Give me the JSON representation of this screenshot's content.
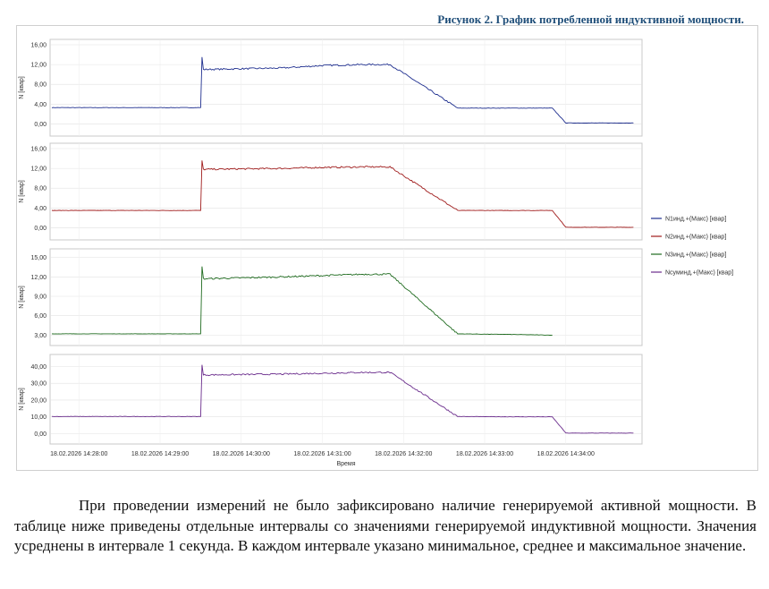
{
  "caption": "Рисунок 2. График потребленной индуктивной мощности.",
  "paragraph": "При проведении измерений не было зафиксировано наличие генерируемой активной мощности. В таблице ниже приведены отдельные интервалы со значениями генерируемой индуктивной мощности. Значения усреднены в интервале 1 секунда. В каждом интервале указано минимальное, среднее и максимальное значение.",
  "colors": {
    "n1": "#1f2f8f",
    "n2": "#a01c1c",
    "n3": "#1f6b1f",
    "nsum": "#6a2c8c"
  },
  "chart_data": [
    {
      "type": "line",
      "ylabel": "N [квар]",
      "yticks": [
        "16,00",
        "12,00",
        "8,00",
        "4,00",
        "0,00"
      ],
      "ylim": [
        -1,
        16
      ],
      "series": [
        {
          "name": "N1инд.+(Макс) [квар]",
          "color": "#1f2f8f",
          "x": [
            "14:27:40",
            "14:29:30",
            "14:29:31",
            "14:29:32",
            "14:30:30",
            "14:31:00",
            "14:31:30",
            "14:31:50",
            "14:32:40",
            "14:33:20",
            "14:33:50",
            "14:34:00",
            "14:34:50"
          ],
          "y": [
            3.3,
            3.3,
            13.5,
            11.0,
            11.3,
            11.8,
            12.0,
            12.0,
            3.2,
            3.2,
            3.2,
            0.2,
            0.2
          ]
        }
      ]
    },
    {
      "type": "line",
      "ylabel": "N [квар]",
      "yticks": [
        "16,00",
        "12,00",
        "8,00",
        "4,00",
        "0,00"
      ],
      "ylim": [
        -1,
        16
      ],
      "series": [
        {
          "name": "N2инд.+(Макс) [квар]",
          "color": "#a01c1c",
          "x": [
            "14:27:40",
            "14:29:30",
            "14:29:31",
            "14:29:32",
            "14:30:30",
            "14:31:00",
            "14:31:30",
            "14:31:50",
            "14:32:40",
            "14:33:20",
            "14:33:50",
            "14:34:00",
            "14:34:50"
          ],
          "y": [
            3.5,
            3.5,
            13.6,
            11.8,
            12.0,
            12.2,
            12.3,
            12.3,
            3.5,
            3.5,
            3.5,
            0.1,
            0.1
          ]
        }
      ]
    },
    {
      "type": "line",
      "ylabel": "N [квар]",
      "yticks": [
        "15,00",
        "12,00",
        "9,00",
        "6,00",
        "3,00"
      ],
      "ylim": [
        2.5,
        15.5
      ],
      "series": [
        {
          "name": "N3инд.+(Макс) [квар]",
          "color": "#1f6b1f",
          "x": [
            "14:27:40",
            "14:29:30",
            "14:29:31",
            "14:29:32",
            "14:30:30",
            "14:31:00",
            "14:31:30",
            "14:31:50",
            "14:32:40",
            "14:33:20",
            "14:33:50"
          ],
          "y": [
            3.2,
            3.2,
            13.6,
            11.7,
            12.0,
            12.2,
            12.4,
            12.4,
            3.2,
            3.1,
            3.0
          ]
        }
      ]
    },
    {
      "type": "line",
      "ylabel": "N [квар]",
      "yticks": [
        "40,00",
        "30,00",
        "20,00",
        "10,00",
        "0,00"
      ],
      "ylim": [
        -3,
        44
      ],
      "xlabel": "Время",
      "xticks": [
        "18.02.2026 14:28:00",
        "18.02.2026 14:29:00",
        "18.02.2026 14:30:00",
        "18.02.2026 14:31:00",
        "18.02.2026 14:32:00",
        "18.02.2026 14:33:00",
        "18.02.2026 14:34:00"
      ],
      "series": [
        {
          "name": "Nсуминд.+(Макс) [квар]",
          "color": "#6a2c8c",
          "x": [
            "14:27:40",
            "14:29:30",
            "14:29:31",
            "14:29:32",
            "14:30:30",
            "14:31:00",
            "14:31:30",
            "14:31:50",
            "14:32:40",
            "14:33:20",
            "14:33:50",
            "14:34:00",
            "14:34:50"
          ],
          "y": [
            10.2,
            10.2,
            41.0,
            35.0,
            35.5,
            36.0,
            36.5,
            36.5,
            10.2,
            10.0,
            10.0,
            0.3,
            0.3
          ]
        }
      ]
    }
  ],
  "legend": [
    {
      "label": "N1инд.+(Макс) [квар]",
      "color": "#1f2f8f"
    },
    {
      "label": "N2инд.+(Макс) [квар]",
      "color": "#a01c1c"
    },
    {
      "label": "N3инд.+(Макс) [квар]",
      "color": "#1f6b1f"
    },
    {
      "label": "Nсуминд.+(Макс) [квар]",
      "color": "#6a2c8c"
    }
  ]
}
